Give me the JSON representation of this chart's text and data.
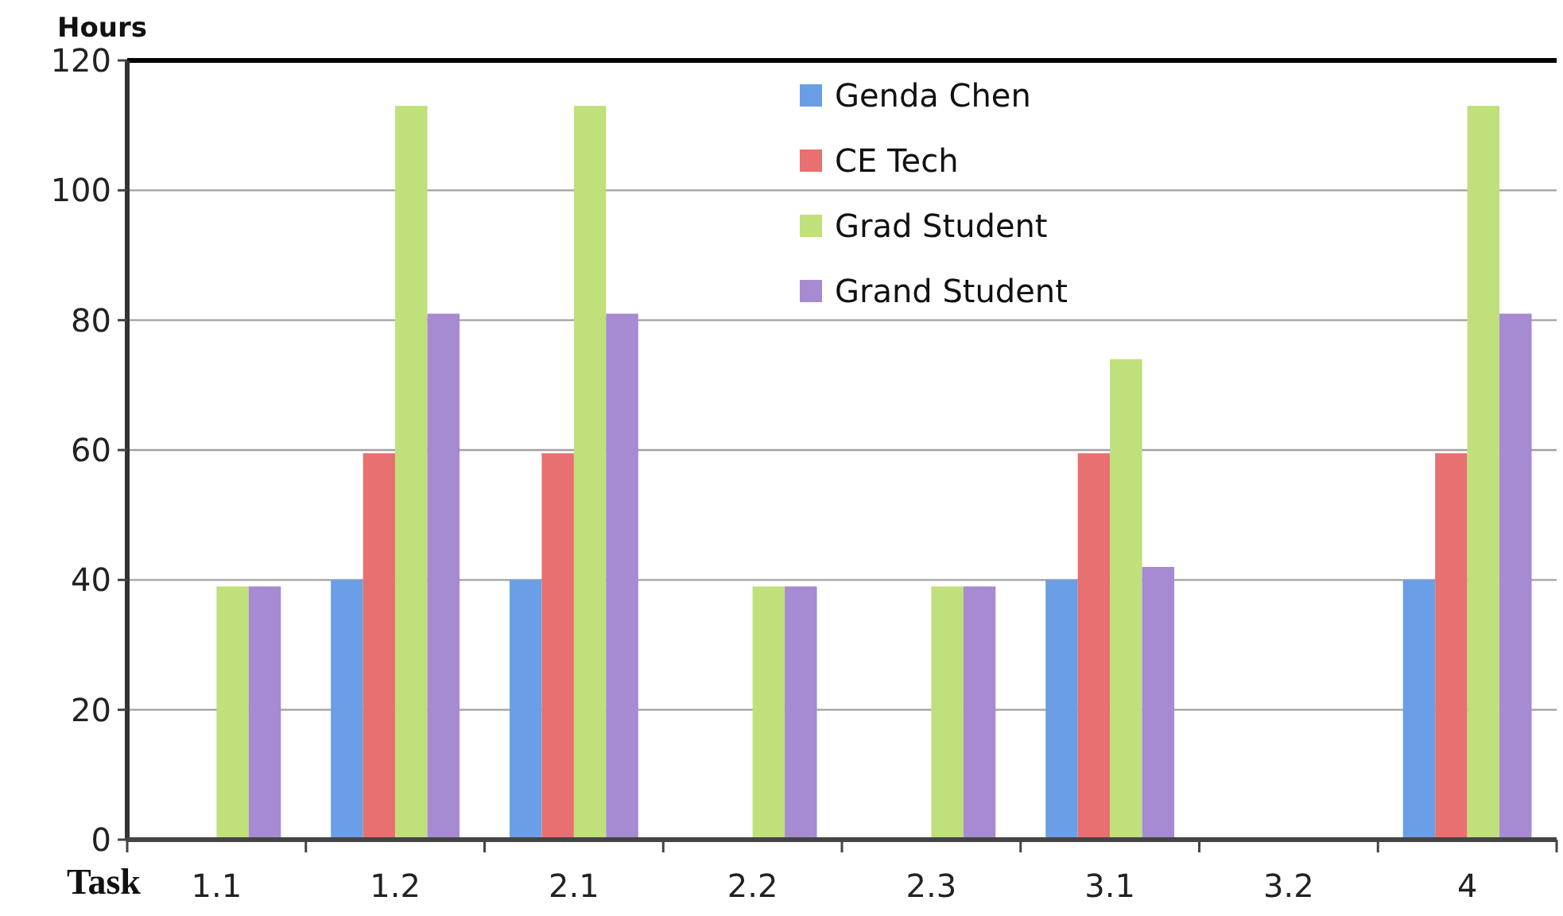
{
  "chart_data": {
    "type": "bar",
    "xlabel": "Task",
    "ylabel": "Hours",
    "categories": [
      "1.1",
      "1.2",
      "2.1",
      "2.2",
      "2.3",
      "3.1",
      "3.2",
      "4"
    ],
    "series": [
      {
        "name": "Genda Chen",
        "color": "#6a9ee6",
        "values": [
          0,
          40,
          40,
          0,
          0,
          40,
          0,
          40
        ]
      },
      {
        "name": "CE Tech",
        "color": "#e87070",
        "values": [
          0,
          59.5,
          59.5,
          0,
          0,
          59.5,
          0,
          59.5
        ]
      },
      {
        "name": "Grad Student",
        "color": "#bfe07a",
        "values": [
          39,
          113,
          113,
          39,
          39,
          74,
          0,
          113
        ]
      },
      {
        "name": "Grand Student",
        "color": "#a68ad2",
        "values": [
          39,
          81,
          81,
          39,
          39,
          42,
          0,
          81
        ]
      }
    ],
    "ylim": [
      0,
      120
    ],
    "yticks": [
      0,
      20,
      40,
      60,
      80,
      100,
      120
    ],
    "grid": "y",
    "legend": "top"
  }
}
